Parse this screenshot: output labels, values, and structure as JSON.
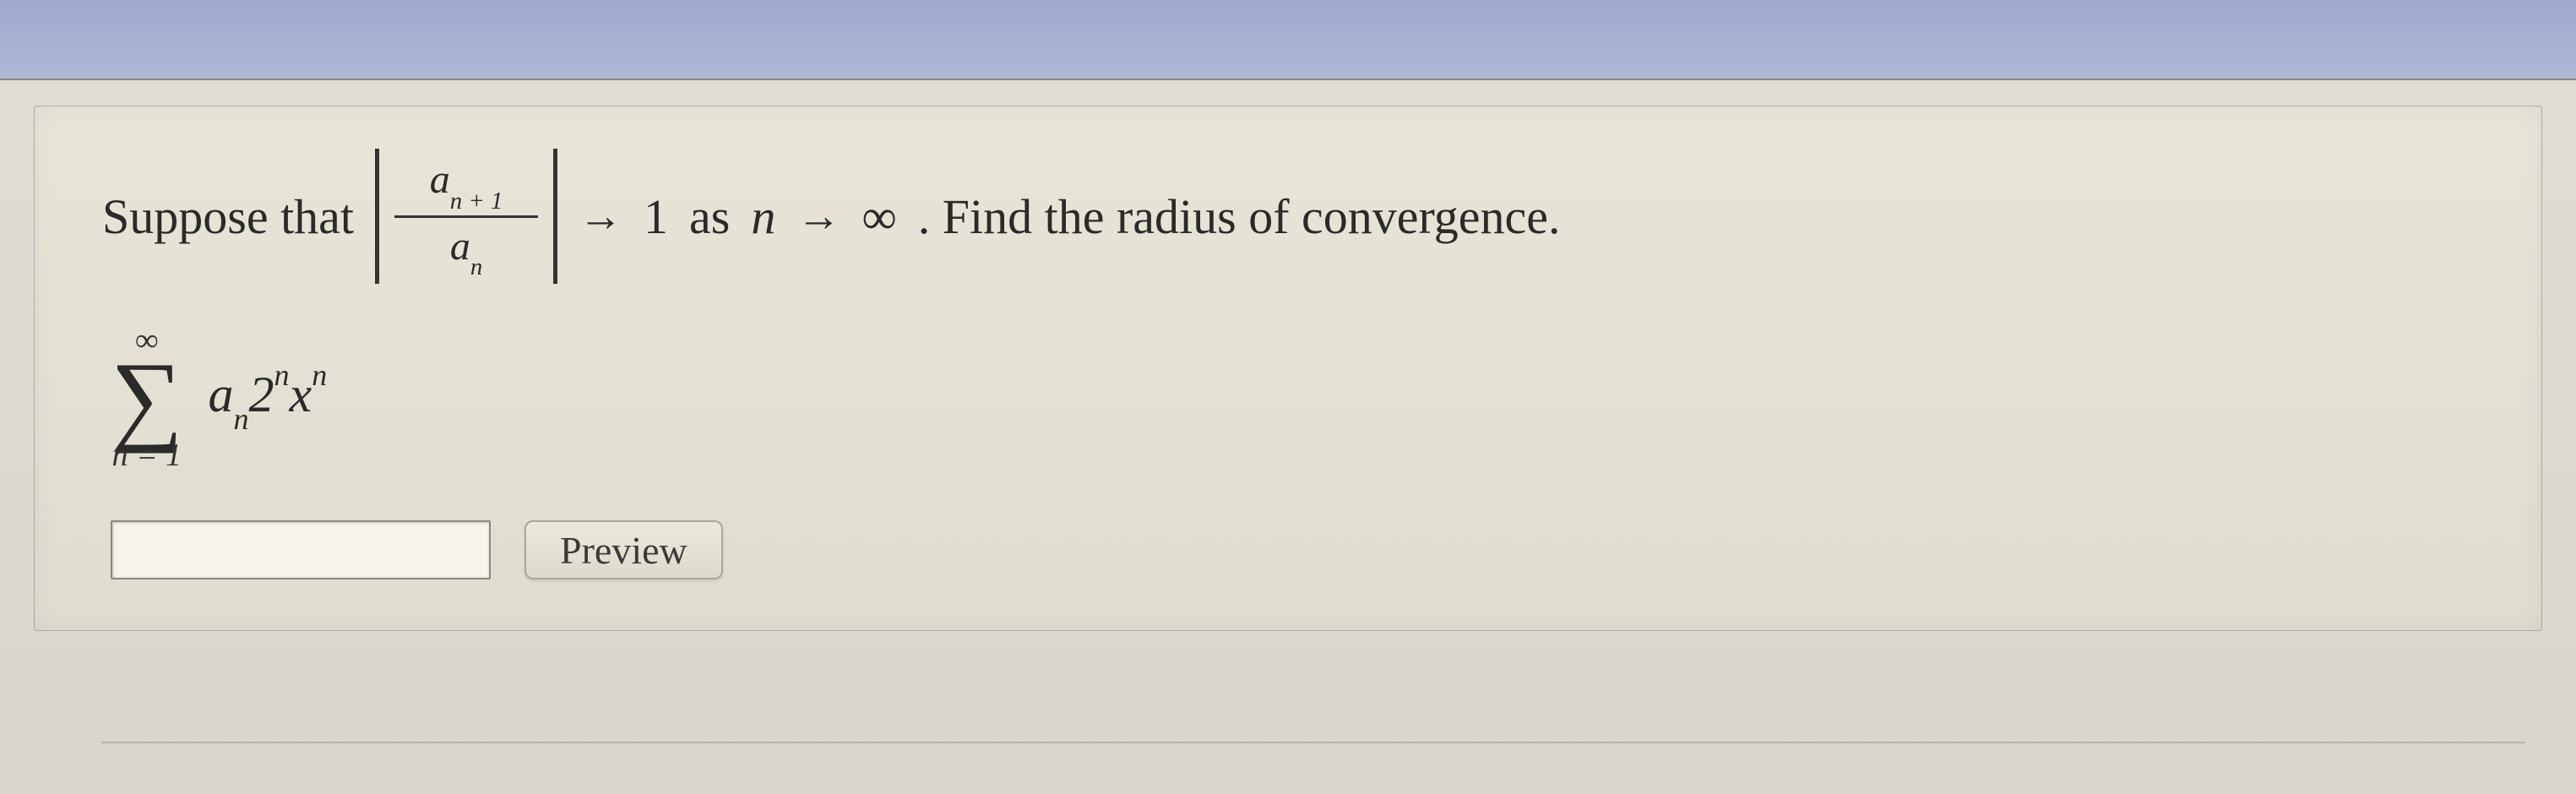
{
  "question": {
    "intro": "Suppose that",
    "fraction": {
      "numerator_base": "a",
      "numerator_sub": "n + 1",
      "denominator_base": "a",
      "denominator_sub": "n"
    },
    "arrow": "→",
    "limit_value": "1",
    "as_text": "as",
    "limit_var": "n",
    "limit_arrow": "→",
    "limit_target": "∞",
    "tail": ". Find the radius of convergence."
  },
  "series": {
    "upper": "∞",
    "sigma": "∑",
    "lower": "n = 1",
    "coeff_base": "a",
    "coeff_sub": "n",
    "factor_base": "2",
    "factor_sup": "n",
    "var_base": "x",
    "var_sup": "n"
  },
  "answer": {
    "value": "",
    "placeholder": ""
  },
  "buttons": {
    "preview": "Preview"
  },
  "colors": {
    "topbar_start": "#9fa8ce",
    "topbar_end": "#b0b8d6",
    "content_bg": "#e0ddd4",
    "box_bg": "#e8e5d8",
    "text": "#2a2a2a",
    "input_bg": "#f5f3eb",
    "button_bg": "#ebe8dc"
  }
}
